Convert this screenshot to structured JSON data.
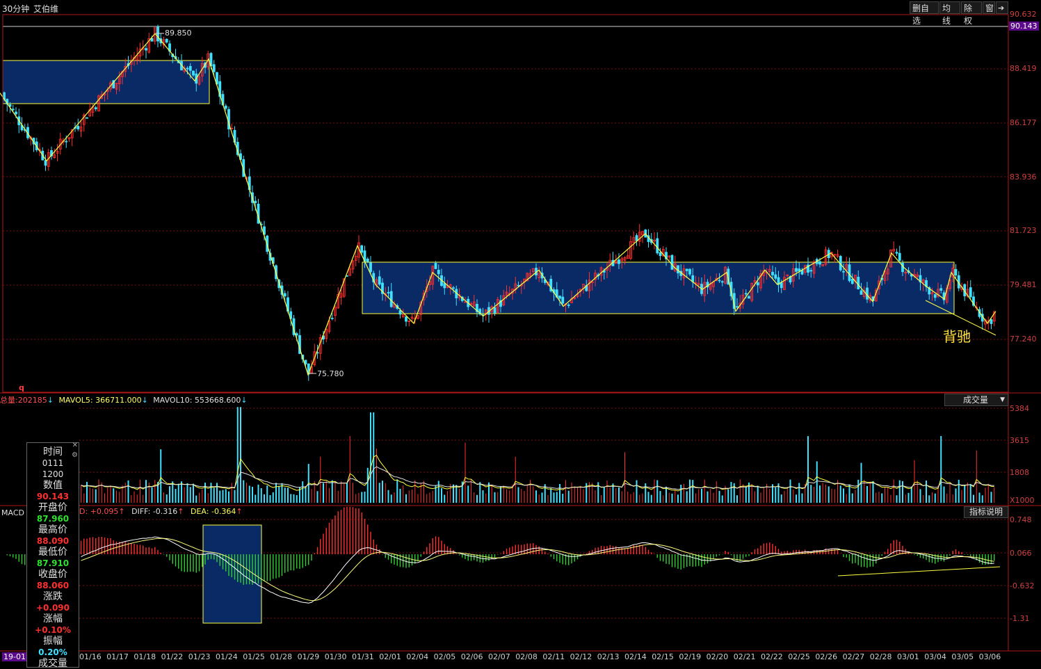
{
  "header": {
    "period": "30分钟",
    "name": "艾伯维"
  },
  "toolbar": {
    "buttons": [
      "删自选",
      "均线",
      "除权",
      "窗"
    ]
  },
  "price_axis": {
    "labels": [
      "90.632",
      "88.419",
      "86.177",
      "83.936",
      "81.723",
      "79.481",
      "77.240"
    ],
    "current": "90.143"
  },
  "annotations": {
    "high": "89.850",
    "low": "75.780",
    "divergence": "背驰",
    "marker": "q"
  },
  "volume": {
    "total_label": "总量:",
    "total": "202185",
    "mavol5_label": "MAVOL5:",
    "mavol5": "366711.000",
    "mavol10_label": "MAVOL10:",
    "mavol10": "553668.600",
    "selector": "成交量",
    "axis": [
      "5384",
      "3615",
      "1808"
    ],
    "unit": "X1000"
  },
  "macd": {
    "label": "MACD",
    "d_text": "D: +0.095",
    "diff_text": "DIFF: -0.316",
    "dea_text": "DEA: -0.364",
    "help": "指标说明",
    "axis": [
      "0.748",
      "0.066",
      "-0.632",
      "-1.31"
    ]
  },
  "info_panel": {
    "time_label": "时间",
    "time1": "0111",
    "time2": "1200",
    "value_label": "数值",
    "value": "90.143",
    "open_label": "开盘价",
    "open": "87.960",
    "high_label": "最高价",
    "high": "88.090",
    "low_label": "最低价",
    "low": "87.910",
    "close_label": "收盘价",
    "close": "88.060",
    "change_label": "涨跌",
    "change": "+0.090",
    "pct_label": "涨幅",
    "pct": "+0.10%",
    "amp_label": "振幅",
    "amp": "0.20%",
    "vol_label": "成交量"
  },
  "bottom_left": "19-01",
  "colors": {
    "up": "#ff3030",
    "down": "#40e0ff",
    "box": "#0a2a66",
    "yellow": "#ffff40",
    "grid": "#7a1010"
  },
  "chart_data": {
    "type": "candlestick",
    "dates": [
      "01/16",
      "01/17",
      "01/18",
      "01/22",
      "01/23",
      "01/24",
      "01/25",
      "01/28",
      "01/29",
      "01/30",
      "01/31",
      "02/01",
      "02/04",
      "02/05",
      "02/06",
      "02/07",
      "02/08",
      "02/11",
      "02/12",
      "02/13",
      "02/14",
      "02/15",
      "02/19",
      "02/20",
      "02/21",
      "02/22",
      "02/25",
      "02/26",
      "02/27",
      "02/28",
      "03/01",
      "03/04",
      "03/05",
      "03/06"
    ],
    "ylim": [
      75.0,
      90.9
    ],
    "pivots": [
      {
        "t": 0,
        "p": 87.4
      },
      {
        "t": 67,
        "p": 84.6
      },
      {
        "t": 223,
        "p": 89.85
      },
      {
        "t": 280,
        "p": 87.9
      },
      {
        "t": 300,
        "p": 88.8
      },
      {
        "t": 443,
        "p": 75.78
      },
      {
        "t": 514,
        "p": 81.1
      },
      {
        "t": 540,
        "p": 79.5
      },
      {
        "t": 595,
        "p": 77.9
      },
      {
        "t": 622,
        "p": 80.0
      },
      {
        "t": 695,
        "p": 78.2
      },
      {
        "t": 775,
        "p": 80.1
      },
      {
        "t": 810,
        "p": 78.6
      },
      {
        "t": 928,
        "p": 81.6
      },
      {
        "t": 970,
        "p": 80.2
      },
      {
        "t": 1010,
        "p": 79.3
      },
      {
        "t": 1045,
        "p": 80.0
      },
      {
        "t": 1058,
        "p": 78.4
      },
      {
        "t": 1100,
        "p": 80.1
      },
      {
        "t": 1118,
        "p": 79.5
      },
      {
        "t": 1195,
        "p": 80.8
      },
      {
        "t": 1255,
        "p": 78.8
      },
      {
        "t": 1282,
        "p": 80.8
      },
      {
        "t": 1300,
        "p": 80.2
      },
      {
        "t": 1333,
        "p": 79.4
      },
      {
        "t": 1358,
        "p": 78.9
      },
      {
        "t": 1368,
        "p": 80.0
      },
      {
        "t": 1420,
        "p": 77.9
      },
      {
        "t": 1432,
        "p": 78.4
      }
    ]
  }
}
